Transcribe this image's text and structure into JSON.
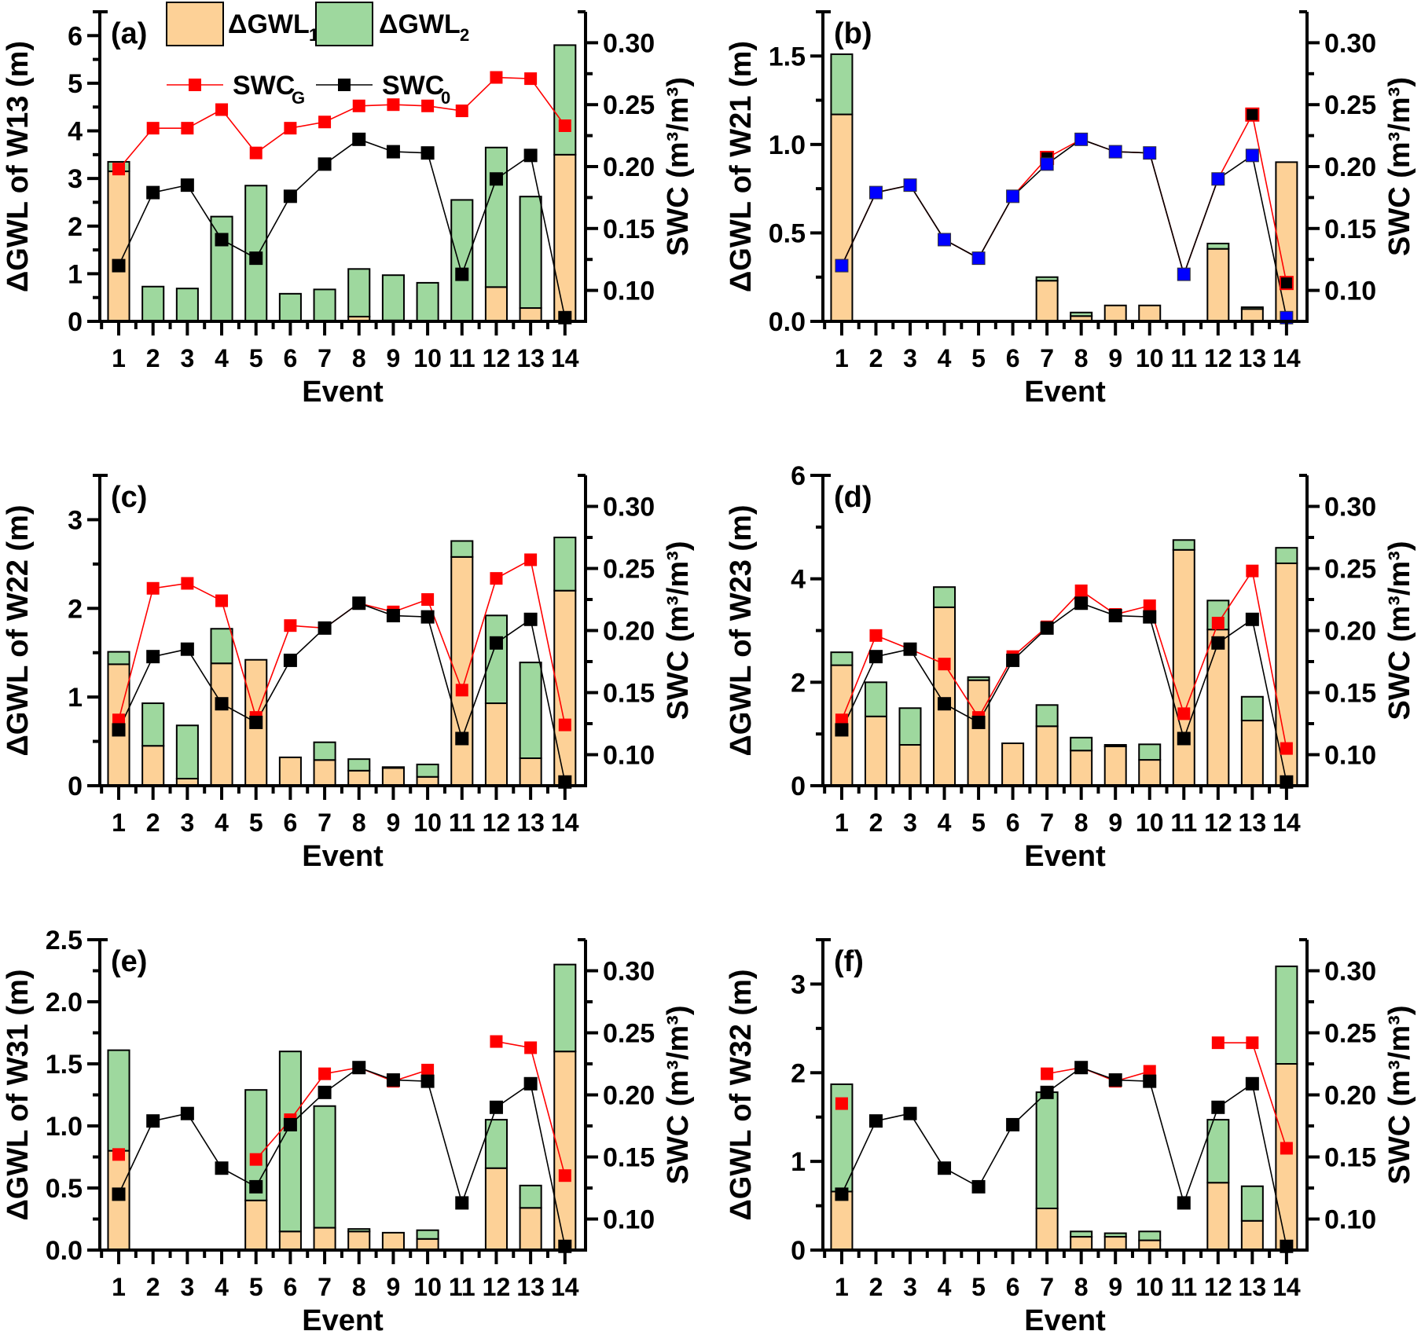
{
  "legend": {
    "gwl1": "ΔGWL",
    "gwl1_sub": "1",
    "gwl2": "ΔGWL",
    "gwl2_sub": "2",
    "swcg": "SWC",
    "swcg_sub": "G",
    "swc0": "SWC",
    "swc0_sub": "0"
  },
  "colors": {
    "gwl1": "#FDD197",
    "gwl2": "#9ED89E",
    "swcg": "#FF0000",
    "swc0": "#000000",
    "coincide": "#0000FF"
  },
  "chart_data": [
    {
      "type": "bar",
      "panel": "(a)",
      "ylabel": "ΔGWL of W13 (m)",
      "y2label": "SWC (m³/m³)",
      "xlabel": "Event",
      "categories": [
        "1",
        "2",
        "3",
        "4",
        "5",
        "6",
        "7",
        "8",
        "9",
        "10",
        "11",
        "12",
        "13",
        "14"
      ],
      "ylim": [
        0,
        6.5
      ],
      "yticks": [
        "0",
        "1",
        "2",
        "3",
        "4",
        "5",
        "6"
      ],
      "ytick_values": [
        0,
        1,
        2,
        3,
        4,
        5,
        6
      ],
      "y2lim": [
        0.075,
        0.325
      ],
      "y2ticks": [
        "0.10",
        "0.15",
        "0.20",
        "0.25",
        "0.30"
      ],
      "y2tick_values": [
        0.1,
        0.15,
        0.2,
        0.25,
        0.3
      ],
      "legend": true,
      "series": [
        {
          "name": "ΔGWL1",
          "kind": "stacked-bar",
          "values": [
            3.15,
            0,
            0,
            0,
            0,
            0,
            0,
            0.1,
            0.02,
            0,
            0,
            0.72,
            0.28,
            3.5
          ]
        },
        {
          "name": "ΔGWL2",
          "kind": "stacked-bar",
          "values": [
            0.2,
            0.73,
            0.69,
            2.2,
            2.85,
            0.58,
            0.67,
            1.0,
            0.95,
            0.81,
            2.55,
            2.93,
            2.34,
            2.3
          ]
        },
        {
          "name": "SWCG",
          "kind": "line",
          "axis": "right",
          "values": [
            0.198,
            0.231,
            0.231,
            0.246,
            0.211,
            0.231,
            0.236,
            0.249,
            0.25,
            0.249,
            0.245,
            0.272,
            0.271,
            0.233
          ]
        },
        {
          "name": "SWC0",
          "kind": "line",
          "axis": "right",
          "values": [
            0.12,
            0.179,
            0.185,
            0.141,
            0.126,
            0.176,
            0.202,
            0.222,
            0.212,
            0.211,
            0.113,
            0.19,
            0.209,
            0.078
          ]
        }
      ]
    },
    {
      "type": "bar",
      "panel": "(b)",
      "ylabel": "ΔGWL of W21 (m)",
      "y2label": "SWC (m³/m³)",
      "xlabel": "Event",
      "categories": [
        "1",
        "2",
        "3",
        "4",
        "5",
        "6",
        "7",
        "8",
        "9",
        "10",
        "11",
        "12",
        "13",
        "14"
      ],
      "ylim": [
        0,
        1.75
      ],
      "yticks": [
        "0.0",
        "0.5",
        "1.0",
        "1.5"
      ],
      "ytick_values": [
        0,
        0.5,
        1.0,
        1.5
      ],
      "y2lim": [
        0.075,
        0.325
      ],
      "y2ticks": [
        "0.10",
        "0.15",
        "0.20",
        "0.25",
        "0.30"
      ],
      "y2tick_values": [
        0.1,
        0.15,
        0.2,
        0.25,
        0.3
      ],
      "legend": false,
      "note": "blue markers where SWCG equals SWC0",
      "series": [
        {
          "name": "ΔGWL1",
          "kind": "stacked-bar",
          "values": [
            1.17,
            0,
            0,
            0,
            0,
            0,
            0.23,
            0.03,
            0.09,
            0.09,
            0,
            0.41,
            0.07,
            0.9
          ]
        },
        {
          "name": "ΔGWL2",
          "kind": "stacked-bar",
          "values": [
            0.34,
            0,
            0,
            0,
            0,
            0,
            0.02,
            0.02,
            0,
            0,
            0,
            0.03,
            0.01,
            0
          ]
        },
        {
          "name": "SWCG",
          "kind": "line",
          "axis": "right",
          "values": [
            0.12,
            0.179,
            0.185,
            0.141,
            0.126,
            0.176,
            0.207,
            0.222,
            0.212,
            0.211,
            0.113,
            0.19,
            0.242,
            0.106
          ]
        },
        {
          "name": "SWC0",
          "kind": "line",
          "axis": "right",
          "values": [
            0.12,
            0.179,
            0.185,
            0.141,
            0.126,
            0.176,
            0.202,
            0.222,
            0.212,
            0.211,
            0.113,
            0.19,
            0.209,
            0.078
          ]
        }
      ]
    },
    {
      "type": "bar",
      "panel": "(c)",
      "ylabel": "ΔGWL of W22 (m)",
      "y2label": "SWC (m³/m³)",
      "xlabel": "Event",
      "categories": [
        "1",
        "2",
        "3",
        "4",
        "5",
        "6",
        "7",
        "8",
        "9",
        "10",
        "11",
        "12",
        "13",
        "14"
      ],
      "ylim": [
        0,
        3.5
      ],
      "yticks": [
        "0",
        "1",
        "2",
        "3"
      ],
      "ytick_values": [
        0,
        1,
        2,
        3
      ],
      "y2lim": [
        0.075,
        0.325
      ],
      "y2ticks": [
        "0.10",
        "0.15",
        "0.20",
        "0.25",
        "0.30"
      ],
      "y2tick_values": [
        0.1,
        0.15,
        0.2,
        0.25,
        0.3
      ],
      "legend": false,
      "series": [
        {
          "name": "ΔGWL1",
          "kind": "stacked-bar",
          "values": [
            1.37,
            0.45,
            0.08,
            1.38,
            1.42,
            0.32,
            0.29,
            0.17,
            0.2,
            0.1,
            2.58,
            0.93,
            0.31,
            2.2
          ]
        },
        {
          "name": "ΔGWL2",
          "kind": "stacked-bar",
          "values": [
            0.14,
            0.48,
            0.6,
            0.39,
            0,
            0,
            0.2,
            0.13,
            0.01,
            0.14,
            0.18,
            0.99,
            1.08,
            0.6
          ]
        },
        {
          "name": "SWCG",
          "kind": "line",
          "axis": "right",
          "values": [
            0.128,
            0.234,
            0.238,
            0.224,
            0.13,
            0.204,
            0.202,
            0.222,
            0.215,
            0.225,
            0.152,
            0.242,
            0.257,
            0.124
          ]
        },
        {
          "name": "SWC0",
          "kind": "line",
          "axis": "right",
          "values": [
            0.12,
            0.179,
            0.185,
            0.141,
            0.126,
            0.176,
            0.202,
            0.222,
            0.212,
            0.211,
            0.113,
            0.19,
            0.209,
            0.078
          ]
        }
      ]
    },
    {
      "type": "bar",
      "panel": "(d)",
      "ylabel": "ΔGWL of W23 (m)",
      "y2label": "SWC (m³/m³)",
      "xlabel": "Event",
      "categories": [
        "1",
        "2",
        "3",
        "4",
        "5",
        "6",
        "7",
        "8",
        "9",
        "10",
        "11",
        "12",
        "13",
        "14"
      ],
      "ylim": [
        0,
        6
      ],
      "yticks": [
        "0",
        "2",
        "4",
        "6"
      ],
      "ytick_values": [
        0,
        2,
        4,
        6
      ],
      "y2lim": [
        0.075,
        0.325
      ],
      "y2ticks": [
        "0.10",
        "0.15",
        "0.20",
        "0.25",
        "0.30"
      ],
      "y2tick_values": [
        0.1,
        0.15,
        0.2,
        0.25,
        0.3
      ],
      "legend": false,
      "series": [
        {
          "name": "ΔGWL1",
          "kind": "stacked-bar",
          "values": [
            2.33,
            1.34,
            0.79,
            3.45,
            2.04,
            0.82,
            1.15,
            0.68,
            0.76,
            0.5,
            4.56,
            3.02,
            1.26,
            4.3
          ]
        },
        {
          "name": "ΔGWL2",
          "kind": "stacked-bar",
          "values": [
            0.25,
            0.66,
            0.71,
            0.39,
            0.06,
            0,
            0.41,
            0.25,
            0.03,
            0.3,
            0.19,
            0.56,
            0.46,
            0.3
          ]
        },
        {
          "name": "SWCG",
          "kind": "line",
          "axis": "right",
          "values": [
            0.128,
            0.196,
            0.185,
            0.173,
            0.13,
            0.179,
            0.203,
            0.232,
            0.213,
            0.22,
            0.133,
            0.206,
            0.248,
            0.105
          ]
        },
        {
          "name": "SWC0",
          "kind": "line",
          "axis": "right",
          "values": [
            0.12,
            0.179,
            0.185,
            0.141,
            0.126,
            0.176,
            0.202,
            0.222,
            0.212,
            0.211,
            0.113,
            0.19,
            0.209,
            0.078
          ]
        }
      ]
    },
    {
      "type": "bar",
      "panel": "(e)",
      "ylabel": "ΔGWL of W31 (m)",
      "y2label": "SWC (m³/m³)",
      "xlabel": "Event",
      "categories": [
        "1",
        "2",
        "3",
        "4",
        "5",
        "6",
        "7",
        "8",
        "9",
        "10",
        "11",
        "12",
        "13",
        "14"
      ],
      "ylim": [
        0,
        2.5
      ],
      "yticks": [
        "0.0",
        "0.5",
        "1.0",
        "1.5",
        "2.0",
        "2.5"
      ],
      "ytick_values": [
        0,
        0.5,
        1.0,
        1.5,
        2.0,
        2.5
      ],
      "y2lim": [
        0.075,
        0.325
      ],
      "y2ticks": [
        "0.10",
        "0.15",
        "0.20",
        "0.25",
        "0.30"
      ],
      "y2tick_values": [
        0.1,
        0.15,
        0.2,
        0.25,
        0.3
      ],
      "legend": false,
      "series": [
        {
          "name": "ΔGWL1",
          "kind": "stacked-bar",
          "values": [
            0.8,
            0,
            0,
            0,
            0.4,
            0.15,
            0.18,
            0.15,
            0.14,
            0.09,
            0,
            0.66,
            0.34,
            1.6
          ]
        },
        {
          "name": "ΔGWL2",
          "kind": "stacked-bar",
          "values": [
            0.81,
            0,
            0,
            0,
            0.89,
            1.45,
            0.98,
            0.02,
            0,
            0.07,
            0,
            0.39,
            0.18,
            0.7
          ]
        },
        {
          "name": "SWCG",
          "kind": "line",
          "axis": "right",
          "values": [
            0.152,
            null,
            null,
            null,
            0.148,
            0.18,
            0.217,
            0.222,
            0.211,
            0.22,
            null,
            0.243,
            0.238,
            0.135
          ]
        },
        {
          "name": "SWC0",
          "kind": "line",
          "axis": "right",
          "values": [
            0.12,
            0.179,
            0.185,
            0.141,
            0.126,
            0.176,
            0.202,
            0.222,
            0.212,
            0.211,
            0.113,
            0.19,
            0.209,
            0.078
          ]
        }
      ]
    },
    {
      "type": "bar",
      "panel": "(f)",
      "ylabel": "ΔGWL of W32 (m)",
      "y2label": "SWC (m³/m³)",
      "xlabel": "Event",
      "categories": [
        "1",
        "2",
        "3",
        "4",
        "5",
        "6",
        "7",
        "8",
        "9",
        "10",
        "11",
        "12",
        "13",
        "14"
      ],
      "ylim": [
        0,
        3.5
      ],
      "yticks": [
        "0",
        "1",
        "2",
        "3"
      ],
      "ytick_values": [
        0,
        1,
        2,
        3
      ],
      "y2lim": [
        0.075,
        0.325
      ],
      "y2ticks": [
        "0.10",
        "0.15",
        "0.20",
        "0.25",
        "0.30"
      ],
      "y2tick_values": [
        0.1,
        0.15,
        0.2,
        0.25,
        0.3
      ],
      "legend": false,
      "series": [
        {
          "name": "ΔGWL1",
          "kind": "stacked-bar",
          "values": [
            0.66,
            0,
            0,
            0,
            0,
            0,
            0.47,
            0.15,
            0.15,
            0.11,
            0,
            0.76,
            0.33,
            2.1
          ]
        },
        {
          "name": "ΔGWL2",
          "kind": "stacked-bar",
          "values": [
            1.21,
            0,
            0,
            0,
            0,
            0,
            1.31,
            0.06,
            0.04,
            0.1,
            0,
            0.71,
            0.39,
            1.1
          ]
        },
        {
          "name": "SWCG",
          "kind": "line",
          "axis": "right",
          "values": [
            0.193,
            null,
            null,
            null,
            null,
            null,
            0.217,
            0.222,
            0.211,
            0.219,
            null,
            0.242,
            0.242,
            0.157
          ]
        },
        {
          "name": "SWC0",
          "kind": "line",
          "axis": "right",
          "values": [
            0.12,
            0.179,
            0.185,
            0.141,
            0.126,
            0.176,
            0.202,
            0.222,
            0.212,
            0.211,
            0.113,
            0.19,
            0.209,
            0.078
          ]
        }
      ]
    }
  ]
}
